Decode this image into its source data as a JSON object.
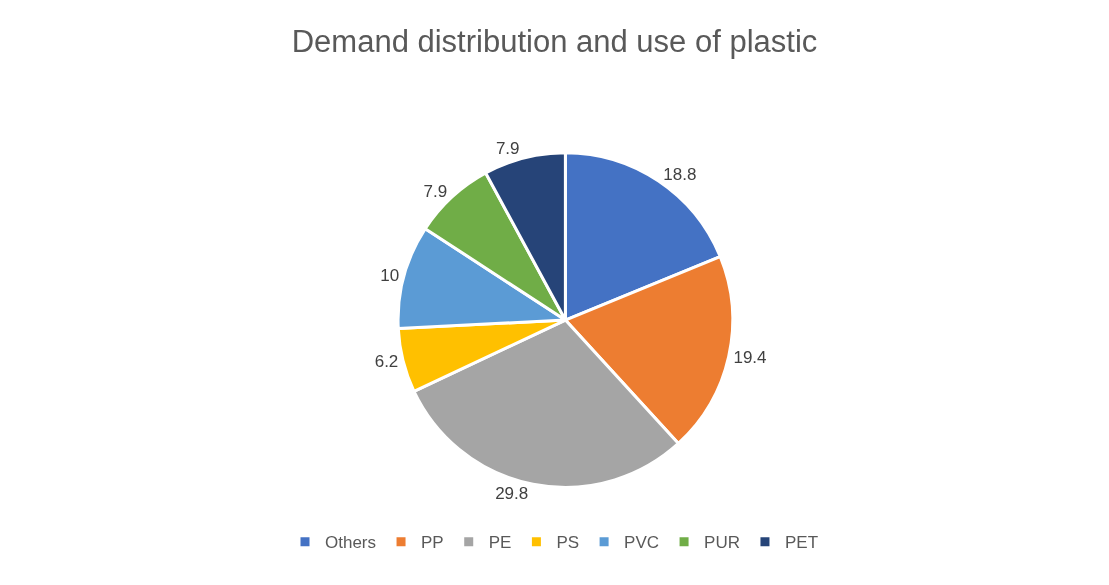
{
  "chart_data": {
    "type": "pie",
    "title": "Demand distribution and use of plastic",
    "categories": [
      "Others",
      "PP",
      "PE",
      "PS",
      "PVC",
      "PUR",
      "PET"
    ],
    "values": [
      18.8,
      19.4,
      29.8,
      6.2,
      10,
      7.9,
      7.9
    ],
    "colors": [
      "#4472c4",
      "#ed7d31",
      "#a5a5a5",
      "#ffc000",
      "#5b9bd5",
      "#70ad47",
      "#264478"
    ],
    "data_labels": true,
    "legend": "bottom"
  }
}
